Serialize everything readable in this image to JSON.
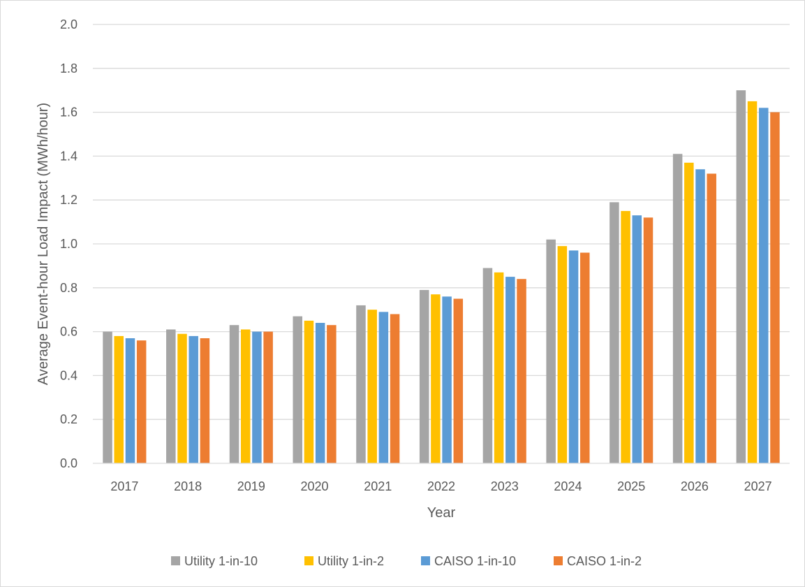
{
  "chart_data": {
    "type": "bar",
    "title": "",
    "xlabel": "Year",
    "ylabel": "Average Event-hour Load Impact (MWh/hour)",
    "ylim": [
      0,
      2.0
    ],
    "yticks": [
      "0.0",
      "0.2",
      "0.4",
      "0.6",
      "0.8",
      "1.0",
      "1.2",
      "1.4",
      "1.6",
      "1.8",
      "2.0"
    ],
    "grid": true,
    "legend_position": "bottom",
    "categories": [
      "2017",
      "2018",
      "2019",
      "2020",
      "2021",
      "2022",
      "2023",
      "2024",
      "2025",
      "2026",
      "2027"
    ],
    "series": [
      {
        "name": "Utility 1-in-10",
        "color": "#a5a5a5",
        "values": [
          0.6,
          0.61,
          0.63,
          0.67,
          0.72,
          0.79,
          0.89,
          1.02,
          1.19,
          1.41,
          1.7
        ]
      },
      {
        "name": "Utility 1-in-2",
        "color": "#ffc000",
        "values": [
          0.58,
          0.59,
          0.61,
          0.65,
          0.7,
          0.77,
          0.87,
          0.99,
          1.15,
          1.37,
          1.65
        ]
      },
      {
        "name": "CAISO 1-in-10",
        "color": "#5b9bd5",
        "values": [
          0.57,
          0.58,
          0.6,
          0.64,
          0.69,
          0.76,
          0.85,
          0.97,
          1.13,
          1.34,
          1.62
        ]
      },
      {
        "name": "CAISO 1-in-2",
        "color": "#ed7d31",
        "values": [
          0.56,
          0.57,
          0.6,
          0.63,
          0.68,
          0.75,
          0.84,
          0.96,
          1.12,
          1.32,
          1.6
        ]
      }
    ]
  }
}
